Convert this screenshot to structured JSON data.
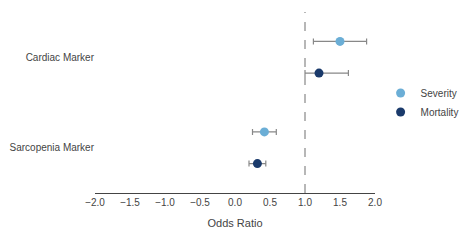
{
  "chart_data": {
    "type": "scatter",
    "orientation": "horizontal",
    "categories": [
      "Cardiac Marker",
      "Sarcopenia Marker"
    ],
    "series": [
      {
        "name": "Severity",
        "color": "#6baed6",
        "values": [
          1.5,
          0.42
        ],
        "error_low": [
          0.38,
          0.17
        ],
        "error_high": [
          0.38,
          0.17
        ]
      },
      {
        "name": "Mortality",
        "color": "#1a3a6b",
        "values": [
          1.2,
          0.32
        ],
        "error_low": [
          0.2,
          0.12
        ],
        "error_high": [
          0.42,
          0.12
        ]
      }
    ],
    "xlabel": "Odds Ratio",
    "xlim": [
      -2.0,
      2.0
    ],
    "xticks": [
      {
        "value": -2.0,
        "label": "−2.0"
      },
      {
        "value": -1.5,
        "label": "−1.5"
      },
      {
        "value": -1.0,
        "label": "−1.0"
      },
      {
        "value": -0.5,
        "label": "−0.5"
      },
      {
        "value": 0.0,
        "label": "0.0"
      },
      {
        "value": 0.5,
        "label": "0.5"
      },
      {
        "value": 1.0,
        "label": "1.0"
      },
      {
        "value": 1.5,
        "label": "1.5"
      },
      {
        "value": 2.0,
        "label": "2.0"
      }
    ],
    "reference_x": 1.0,
    "grid": false,
    "legend": "right"
  }
}
